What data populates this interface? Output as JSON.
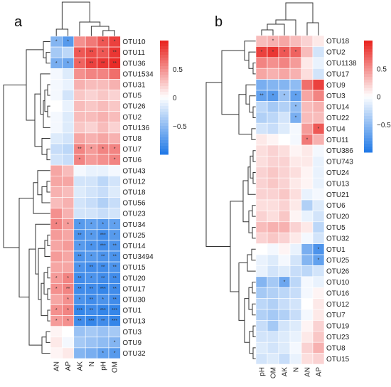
{
  "colors": {
    "low": "#1f78e6",
    "mid": "#ffffff",
    "high": "#e8201c",
    "dendrogram": "#333333",
    "grid": "#ffffff"
  },
  "chart_data": [
    {
      "type": "heatmap",
      "panel_label": "a",
      "title": "",
      "columns": [
        "AN",
        "AP",
        "AK",
        "N",
        "pH",
        "OM"
      ],
      "rows": [
        "OTU10",
        "OTU11",
        "OTU36",
        "OTU1534",
        "OTU31",
        "OTU5",
        "OTU26",
        "OTU2",
        "OTU136",
        "OTU8",
        "OTU7",
        "OTU6",
        "OTU43",
        "OTU12",
        "OTU18",
        "OTU56",
        "OTU23",
        "OTU34",
        "OTU25",
        "OTU14",
        "OTU3494",
        "OTU15",
        "OTU20",
        "OTU17",
        "OTU30",
        "OTU1",
        "OTU13",
        "OTU3",
        "OTU9",
        "OTU32"
      ],
      "values": [
        [
          -0.55,
          -0.75,
          0.5,
          0.6,
          0.75,
          0.85
        ],
        [
          -0.4,
          -0.3,
          0.75,
          0.8,
          0.75,
          0.9
        ],
        [
          -0.6,
          -0.65,
          0.7,
          0.85,
          0.9,
          0.95
        ],
        [
          -0.05,
          -0.15,
          0.5,
          0.55,
          0.55,
          0.65
        ],
        [
          -0.05,
          -0.1,
          0.35,
          0.3,
          0.3,
          0.35
        ],
        [
          -0.05,
          -0.2,
          0.25,
          0.2,
          0.25,
          0.2
        ],
        [
          0.0,
          -0.1,
          0.3,
          0.25,
          0.3,
          0.25
        ],
        [
          -0.05,
          -0.15,
          0.3,
          0.3,
          0.35,
          0.3
        ],
        [
          -0.05,
          -0.15,
          0.25,
          0.2,
          0.3,
          0.2
        ],
        [
          -0.15,
          -0.2,
          0.4,
          0.35,
          0.4,
          0.35
        ],
        [
          -0.25,
          -0.3,
          0.55,
          0.45,
          0.55,
          0.55
        ],
        [
          -0.2,
          -0.25,
          0.55,
          0.45,
          0.5,
          0.55
        ],
        [
          0.4,
          0.3,
          -0.05,
          -0.1,
          -0.1,
          -0.05
        ],
        [
          0.4,
          0.4,
          -0.2,
          -0.2,
          -0.3,
          -0.2
        ],
        [
          0.35,
          0.3,
          -0.15,
          -0.2,
          -0.25,
          -0.15
        ],
        [
          0.3,
          0.35,
          -0.2,
          -0.25,
          -0.35,
          -0.25
        ],
        [
          0.5,
          0.35,
          -0.2,
          -0.2,
          -0.25,
          -0.2
        ],
        [
          0.55,
          0.45,
          -0.75,
          -0.7,
          -0.75,
          -0.7
        ],
        [
          0.45,
          0.4,
          -0.8,
          -0.75,
          -0.85,
          -0.75
        ],
        [
          0.4,
          0.45,
          -0.75,
          -0.8,
          -0.85,
          -0.8
        ],
        [
          0.45,
          0.4,
          -0.8,
          -0.75,
          -0.8,
          -0.8
        ],
        [
          0.4,
          0.4,
          -0.8,
          -0.85,
          -0.85,
          -0.8
        ],
        [
          0.45,
          0.55,
          -0.85,
          -0.8,
          -0.85,
          -0.85
        ],
        [
          0.5,
          0.55,
          -0.85,
          -0.85,
          -0.9,
          -0.85
        ],
        [
          0.4,
          0.5,
          -0.8,
          -0.85,
          -0.8,
          -0.85
        ],
        [
          0.5,
          0.55,
          -0.9,
          -0.85,
          -0.9,
          -0.9
        ],
        [
          0.45,
          0.5,
          -0.85,
          -0.9,
          -0.85,
          -0.9
        ],
        [
          0.05,
          0.0,
          -0.45,
          -0.4,
          -0.45,
          -0.4
        ],
        [
          0.1,
          -0.05,
          -0.4,
          -0.45,
          -0.5,
          -0.55
        ],
        [
          0.05,
          0.1,
          -0.55,
          -0.6,
          -0.7,
          -0.75
        ]
      ],
      "significance": [
        [
          "*",
          "*",
          "",
          "",
          "*",
          "*"
        ],
        [
          "",
          "",
          "*",
          "**",
          "*",
          "**"
        ],
        [
          "*",
          "*",
          "*",
          "**",
          "**",
          "**"
        ],
        [
          "",
          "",
          "",
          "",
          "",
          ""
        ],
        [
          "",
          "",
          "",
          "",
          "",
          ""
        ],
        [
          "",
          "",
          "",
          "",
          "",
          ""
        ],
        [
          "",
          "",
          "",
          "",
          "",
          ""
        ],
        [
          "",
          "",
          "",
          "",
          "",
          ""
        ],
        [
          "",
          "",
          "",
          "",
          "",
          ""
        ],
        [
          "",
          "",
          "",
          "",
          "",
          ""
        ],
        [
          "",
          "",
          "**",
          "*",
          "*",
          "*"
        ],
        [
          "",
          "",
          "*",
          "",
          "",
          "*"
        ],
        [
          "",
          "",
          "",
          "",
          "",
          ""
        ],
        [
          "",
          "",
          "",
          "",
          "",
          ""
        ],
        [
          "",
          "",
          "",
          "",
          "",
          ""
        ],
        [
          "",
          "",
          "",
          "",
          "",
          ""
        ],
        [
          "",
          "",
          "",
          "",
          "",
          ""
        ],
        [
          "*",
          "*",
          "*",
          "*",
          "*",
          "*"
        ],
        [
          "",
          "",
          "**",
          "*",
          "***",
          "*"
        ],
        [
          "",
          "",
          "*",
          "*",
          "***",
          "**"
        ],
        [
          "",
          "",
          "**",
          "*",
          "**",
          "**"
        ],
        [
          "",
          "",
          "*",
          "**",
          "**",
          "**"
        ],
        [
          "*",
          "*",
          "**",
          "*",
          "**",
          "**"
        ],
        [
          "*",
          "**",
          "**",
          "**",
          "***",
          "**"
        ],
        [
          "",
          "*",
          "*",
          "**",
          "*",
          "**"
        ],
        [
          "*",
          "*",
          "***",
          "**",
          "***",
          "***"
        ],
        [
          "*",
          "*",
          "**",
          "***",
          "**",
          "***"
        ],
        [
          "",
          "",
          "",
          "",
          "",
          ""
        ],
        [
          "",
          "",
          "",
          "",
          "",
          "*"
        ],
        [
          "",
          "",
          "",
          "",
          "*",
          "*"
        ]
      ],
      "legend_ticks": [
        0.5,
        0,
        -0.5
      ],
      "legend_tick_labels": [
        "0.5",
        "0",
        "−0.5"
      ],
      "zlim": [
        -1,
        1
      ]
    },
    {
      "type": "heatmap",
      "panel_label": "b",
      "title": "",
      "columns": [
        "pH",
        "OM",
        "AK",
        "N",
        "AN",
        "AP"
      ],
      "rows": [
        "OTU18",
        "OTU2",
        "OTU1138",
        "OTU17",
        "OTU9",
        "OTU3",
        "OTU14",
        "OTU22",
        "OTU4",
        "OTU11",
        "OTU386",
        "OTU743",
        "OTU24",
        "OTU13",
        "OTU21",
        "OTU6",
        "OTU20",
        "OTU5",
        "OTU32",
        "OTU1",
        "OTU25",
        "OTU26",
        "OTU10",
        "OTU16",
        "OTU12",
        "OTU7",
        "OTU19",
        "OTU23",
        "OTU8",
        "OTU15"
      ],
      "values": [
        [
          0.3,
          0.35,
          0.4,
          0.3,
          0.2,
          0.1
        ],
        [
          0.85,
          0.9,
          0.75,
          0.7,
          0.3,
          -0.2
        ],
        [
          0.55,
          0.5,
          0.55,
          0.45,
          0.1,
          -0.1
        ],
        [
          0.4,
          0.35,
          0.4,
          0.35,
          0.15,
          -0.2
        ],
        [
          -0.6,
          -0.55,
          -0.55,
          -0.5,
          0.65,
          0.85
        ],
        [
          -0.7,
          -0.75,
          -0.45,
          -0.7,
          0.4,
          0.55
        ],
        [
          -0.3,
          -0.4,
          -0.35,
          -0.5,
          0.3,
          0.35
        ],
        [
          -0.35,
          -0.3,
          -0.2,
          -0.6,
          0.3,
          0.3
        ],
        [
          -0.2,
          -0.25,
          -0.15,
          -0.05,
          0.45,
          0.75
        ],
        [
          0.1,
          0.05,
          0.0,
          -0.05,
          0.6,
          0.35
        ],
        [
          0.15,
          0.2,
          0.15,
          0.05,
          0.1,
          -0.05
        ],
        [
          0.15,
          0.2,
          0.2,
          0.1,
          0.1,
          -0.1
        ],
        [
          0.2,
          0.25,
          0.2,
          0.15,
          0.05,
          -0.1
        ],
        [
          0.2,
          0.25,
          0.2,
          0.1,
          0.05,
          -0.1
        ],
        [
          0.2,
          0.2,
          0.25,
          0.15,
          -0.1,
          -0.05
        ],
        [
          0.15,
          0.15,
          0.2,
          0.1,
          -0.35,
          -0.15
        ],
        [
          0.2,
          0.15,
          0.25,
          0.05,
          -0.1,
          -0.2
        ],
        [
          0.3,
          0.35,
          0.35,
          0.2,
          0.1,
          -0.3
        ],
        [
          0.2,
          0.25,
          0.2,
          0.1,
          -0.05,
          -0.2
        ],
        [
          0.0,
          -0.05,
          0.05,
          -0.1,
          -0.6,
          -0.8
        ],
        [
          -0.1,
          -0.15,
          -0.05,
          -0.2,
          -0.55,
          -0.7
        ],
        [
          -0.1,
          -0.2,
          -0.15,
          -0.25,
          -0.3,
          -0.2
        ],
        [
          -0.55,
          -0.4,
          -0.65,
          -0.3,
          -0.05,
          -0.1
        ],
        [
          -0.4,
          -0.35,
          -0.3,
          -0.25,
          -0.05,
          0.05
        ],
        [
          -0.3,
          -0.35,
          -0.25,
          -0.2,
          0.0,
          0.1
        ],
        [
          -0.35,
          -0.4,
          -0.35,
          -0.25,
          -0.05,
          0.1
        ],
        [
          -0.25,
          -0.4,
          -0.2,
          -0.15,
          0.05,
          0.2
        ],
        [
          -0.2,
          -0.2,
          -0.15,
          -0.1,
          0.1,
          0.25
        ],
        [
          -0.15,
          -0.2,
          -0.15,
          -0.05,
          0.2,
          0.35
        ],
        [
          -0.2,
          -0.15,
          -0.25,
          -0.1,
          0.15,
          0.2
        ]
      ],
      "significance": [
        [
          "",
          "*",
          "",
          "",
          "",
          ""
        ],
        [
          "*",
          "*",
          "*",
          "*",
          "",
          ""
        ],
        [
          "",
          "",
          "",
          "",
          "",
          ""
        ],
        [
          "",
          "",
          "",
          "",
          "",
          ""
        ],
        [
          "",
          "",
          "",
          "",
          "",
          ""
        ],
        [
          "**",
          "*",
          "*",
          "*",
          "",
          ""
        ],
        [
          "",
          "",
          "",
          "*",
          "",
          ""
        ],
        [
          "",
          "",
          "",
          "*",
          "",
          ""
        ],
        [
          "",
          "",
          "",
          "",
          "",
          "*"
        ],
        [
          "",
          "",
          "",
          "",
          "*",
          ""
        ],
        [
          "",
          "",
          "",
          "",
          "",
          ""
        ],
        [
          "",
          "",
          "",
          "",
          "",
          ""
        ],
        [
          "",
          "",
          "",
          "",
          "",
          ""
        ],
        [
          "",
          "",
          "",
          "",
          "",
          ""
        ],
        [
          "",
          "",
          "",
          "",
          "",
          ""
        ],
        [
          "",
          "",
          "",
          "",
          "",
          ""
        ],
        [
          "",
          "",
          "",
          "",
          "",
          ""
        ],
        [
          "",
          "",
          "",
          "",
          "",
          ""
        ],
        [
          "",
          "",
          "",
          "",
          "",
          ""
        ],
        [
          "",
          "",
          "",
          "",
          "",
          "*"
        ],
        [
          "",
          "",
          "",
          "",
          "",
          "*"
        ],
        [
          "",
          "",
          "",
          "",
          "",
          ""
        ],
        [
          "",
          "",
          "*",
          "",
          "",
          ""
        ],
        [
          "",
          "",
          "",
          "",
          "",
          ""
        ],
        [
          "",
          "",
          "",
          "",
          "",
          ""
        ],
        [
          "",
          "",
          "",
          "",
          "",
          ""
        ],
        [
          "",
          "",
          "",
          "",
          "",
          ""
        ],
        [
          "",
          "",
          "",
          "",
          "",
          ""
        ],
        [
          "",
          "",
          "",
          "",
          "",
          ""
        ],
        [
          "",
          "",
          "",
          "",
          "",
          ""
        ]
      ],
      "legend_ticks": [
        0.5,
        0,
        -0.5
      ],
      "legend_tick_labels": [
        "0.5",
        "0",
        "−0.5"
      ],
      "zlim": [
        -1,
        1
      ]
    }
  ]
}
